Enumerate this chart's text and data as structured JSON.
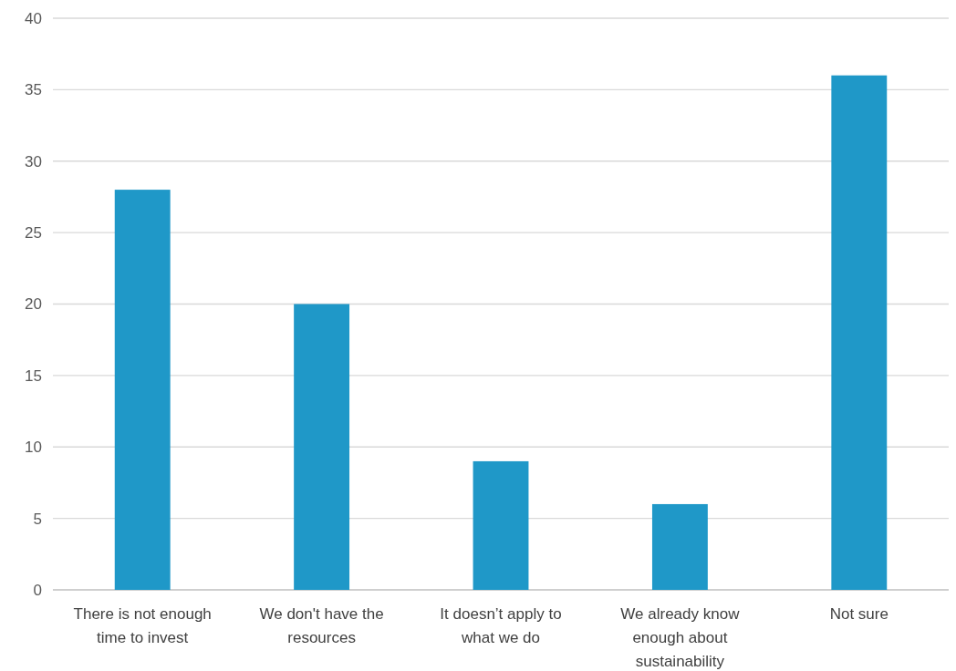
{
  "chart_data": {
    "type": "bar",
    "categories": [
      "There is not enough time to invest",
      "We don't have the resources",
      "It doesn’t apply to what we do",
      "We already know enough about sustainability",
      "Not sure"
    ],
    "values": [
      28,
      20,
      9,
      6,
      36
    ],
    "color": "#1f98c8",
    "ylim": [
      0,
      40
    ],
    "yticks": [
      0,
      5,
      10,
      15,
      20,
      25,
      30,
      35,
      40
    ],
    "grid": "y"
  }
}
